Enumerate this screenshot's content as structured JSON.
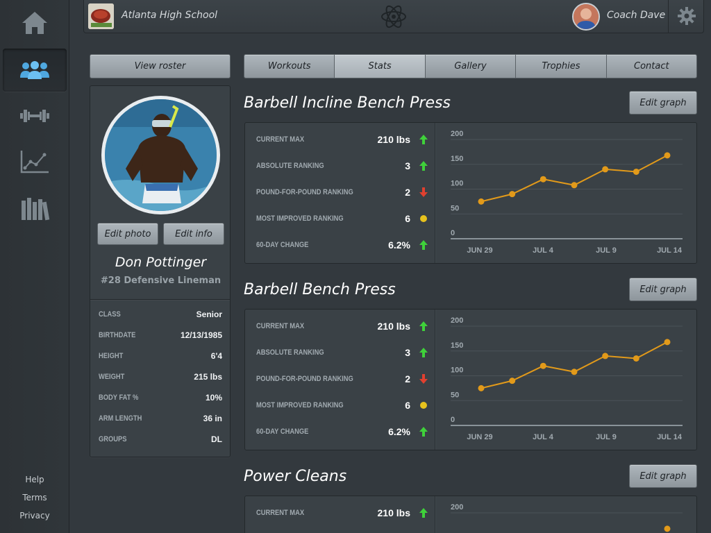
{
  "header": {
    "school_name": "Atlanta High School",
    "coach_name": "Coach Dave"
  },
  "nav": {
    "items": [
      {
        "icon": "home-icon",
        "active": false
      },
      {
        "icon": "team-icon",
        "active": true
      },
      {
        "icon": "dumbbell-icon",
        "active": false
      },
      {
        "icon": "chart-icon",
        "active": false
      },
      {
        "icon": "library-icon",
        "active": false
      }
    ],
    "links": [
      "Help",
      "Terms",
      "Privacy"
    ]
  },
  "roster_button": "View roster",
  "tabs": [
    "Workouts",
    "Stats",
    "Gallery",
    "Trophies",
    "Contact"
  ],
  "active_tab": "Stats",
  "profile": {
    "edit_photo": "Edit photo",
    "edit_info": "Edit info",
    "name": "Don Pottinger",
    "position": "#28  Defensive Lineman",
    "info": [
      {
        "label": "CLASS",
        "value": "Senior"
      },
      {
        "label": "BIRTHDATE",
        "value": "12/13/1985"
      },
      {
        "label": "HEIGHT",
        "value": "6'4"
      },
      {
        "label": "WEIGHT",
        "value": "215 lbs"
      },
      {
        "label": "BODY FAT %",
        "value": "10%"
      },
      {
        "label": "ARM LENGTH",
        "value": "36 in"
      },
      {
        "label": "GROUPS",
        "value": "DL"
      }
    ]
  },
  "edit_graph_label": "Edit graph",
  "sections": [
    {
      "title": "Barbell Incline Bench Press",
      "stats": [
        {
          "label": "CURRENT MAX",
          "value": "210 lbs",
          "trend": "up"
        },
        {
          "label": "ABSOLUTE RANKING",
          "value": "3",
          "trend": "up"
        },
        {
          "label": "POUND-FOR-POUND RANKING",
          "value": "2",
          "trend": "down"
        },
        {
          "label": "MOST IMPROVED RANKING",
          "value": "6",
          "trend": "same"
        },
        {
          "label": "60-DAY CHANGE",
          "value": "6.2%",
          "trend": "up"
        }
      ]
    },
    {
      "title": "Barbell Bench Press",
      "stats": [
        {
          "label": "CURRENT MAX",
          "value": "210 lbs",
          "trend": "up"
        },
        {
          "label": "ABSOLUTE RANKING",
          "value": "3",
          "trend": "up"
        },
        {
          "label": "POUND-FOR-POUND RANKING",
          "value": "2",
          "trend": "down"
        },
        {
          "label": "MOST IMPROVED RANKING",
          "value": "6",
          "trend": "same"
        },
        {
          "label": "60-DAY CHANGE",
          "value": "6.2%",
          "trend": "up"
        }
      ]
    },
    {
      "title": "Power Cleans",
      "stats": [
        {
          "label": "CURRENT MAX",
          "value": "210 lbs",
          "trend": "up"
        }
      ]
    }
  ],
  "colors": {
    "up": "#3fd13a",
    "down": "#e0402f",
    "same": "#e7c21d",
    "line": "#e29a1a"
  },
  "chart_data": [
    {
      "type": "line",
      "yticks": [
        0,
        50,
        100,
        150,
        200
      ],
      "ylim": [
        0,
        200
      ],
      "x_tick_labels": [
        "JUN 29",
        "JUL 4",
        "JUL 9",
        "JUL 14"
      ],
      "values": [
        75,
        90,
        120,
        108,
        140,
        135,
        168
      ]
    },
    {
      "type": "line",
      "yticks": [
        0,
        50,
        100,
        150,
        200
      ],
      "ylim": [
        0,
        200
      ],
      "x_tick_labels": [
        "JUN 29",
        "JUL 4",
        "JUL 9",
        "JUL 14"
      ],
      "values": [
        75,
        90,
        120,
        108,
        140,
        135,
        168
      ]
    },
    {
      "type": "line",
      "yticks": [
        200
      ],
      "ylim": [
        0,
        200
      ],
      "x_tick_labels": [],
      "values": [
        168
      ]
    }
  ]
}
